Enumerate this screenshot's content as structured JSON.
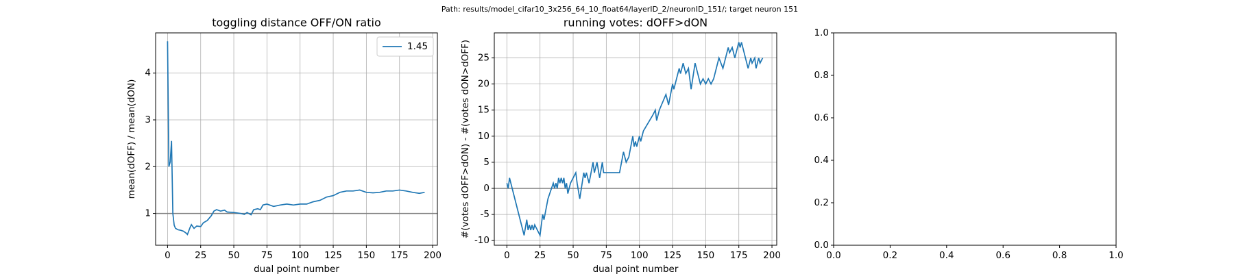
{
  "title": "Path: results/model_cifar10_3x256_64_10_float64/layerID_2/neuronID_151/; target neuron 151",
  "chart_data": [
    {
      "type": "line",
      "title": "toggling distance OFF/ON ratio",
      "xlabel": "dual point number",
      "ylabel": "mean(dOFF) / mean(dON)",
      "x": [
        0,
        1,
        2,
        3,
        4,
        5,
        6,
        8,
        10,
        12,
        14,
        15,
        17,
        18,
        20,
        22,
        25,
        27,
        30,
        33,
        35,
        37,
        40,
        43,
        45,
        50,
        55,
        58,
        60,
        63,
        65,
        68,
        70,
        72,
        75,
        78,
        80,
        85,
        90,
        95,
        100,
        105,
        110,
        115,
        120,
        125,
        130,
        135,
        140,
        145,
        150,
        155,
        160,
        165,
        170,
        175,
        180,
        185,
        190,
        194
      ],
      "series": [
        {
          "name": "1.45",
          "color": "#1f77b4",
          "values": [
            4.68,
            2.0,
            2.1,
            2.55,
            1.0,
            0.75,
            0.68,
            0.65,
            0.64,
            0.62,
            0.58,
            0.55,
            0.7,
            0.76,
            0.68,
            0.73,
            0.72,
            0.8,
            0.85,
            0.95,
            1.05,
            1.08,
            1.05,
            1.07,
            1.03,
            1.02,
            1.0,
            0.98,
            1.02,
            0.97,
            1.08,
            1.1,
            1.08,
            1.18,
            1.2,
            1.17,
            1.15,
            1.18,
            1.2,
            1.18,
            1.2,
            1.2,
            1.25,
            1.28,
            1.35,
            1.38,
            1.45,
            1.48,
            1.48,
            1.5,
            1.45,
            1.44,
            1.45,
            1.48,
            1.48,
            1.5,
            1.48,
            1.45,
            1.43,
            1.45
          ]
        }
      ],
      "xlim": [
        -9,
        203.6
      ],
      "ylim": [
        0.32,
        4.86
      ],
      "xticks": [
        0,
        25,
        50,
        75,
        100,
        125,
        150,
        175,
        200
      ],
      "yticks": [
        1,
        2,
        3,
        4
      ],
      "grid": true,
      "legend": "upper right",
      "hline": 1,
      "hline_color": "#808080"
    },
    {
      "type": "line",
      "title": "running votes: dOFF>dON",
      "xlabel": "dual point number",
      "ylabel": "#(votes dOFF>dON) - #(votes dON>dOFF)",
      "x": [
        0,
        1,
        2,
        13,
        15,
        16,
        17,
        18,
        19,
        20,
        21,
        25,
        27,
        28,
        31,
        35,
        36,
        37,
        38,
        39,
        40,
        41,
        42,
        43,
        44,
        45,
        46,
        48,
        52,
        53,
        55,
        58,
        59,
        60,
        62,
        65,
        66,
        67,
        68,
        70,
        72,
        73,
        75,
        80,
        85,
        88,
        90,
        92,
        95,
        96,
        97,
        98,
        100,
        101,
        103,
        110,
        112,
        113,
        115,
        120,
        122,
        125,
        126,
        130,
        131,
        133,
        135,
        137,
        139,
        142,
        143,
        146,
        148,
        150,
        152,
        154,
        156,
        160,
        163,
        167,
        168,
        170,
        172,
        175,
        176,
        177,
        180,
        182,
        184,
        185,
        187,
        188,
        190,
        191,
        193
      ],
      "series": [
        {
          "name": "votes",
          "color": "#1f77b4",
          "values": [
            1,
            0,
            2,
            -9,
            -6,
            -8,
            -7,
            -8,
            -7,
            -8,
            -7,
            -9,
            -5,
            -6,
            -2,
            1,
            0,
            1,
            0,
            2,
            1,
            2,
            1,
            2,
            0,
            1,
            -1,
            1,
            3,
            1,
            -2,
            3,
            2,
            3,
            1,
            5,
            3,
            4,
            5,
            2,
            5,
            3,
            3,
            3,
            3,
            7,
            5,
            6,
            10,
            8,
            9,
            8,
            10,
            9,
            11,
            14,
            15,
            13,
            15,
            18,
            16,
            20,
            19,
            23,
            22,
            24,
            22,
            23,
            19,
            24,
            23,
            20,
            21,
            20,
            21,
            20,
            21,
            25,
            23,
            27,
            26,
            27,
            25,
            28,
            27,
            28,
            25,
            23,
            25,
            24,
            25,
            23,
            25,
            24,
            25
          ]
        }
      ],
      "xlim": [
        -9.5,
        203.6
      ],
      "ylim": [
        -10.9,
        29.8
      ],
      "xticks": [
        0,
        25,
        50,
        75,
        100,
        125,
        150,
        175,
        200
      ],
      "yticks": [
        -10,
        -5,
        0,
        5,
        10,
        15,
        20,
        25
      ],
      "grid": true,
      "hline": 0,
      "hline_color": "#808080"
    },
    {
      "type": "line",
      "series": [],
      "xlim": [
        0,
        1
      ],
      "ylim": [
        0,
        1
      ],
      "xticks": [
        {
          "value": 0,
          "label": "0.0"
        },
        0.2,
        0.4,
        0.6,
        0.8,
        {
          "value": 1,
          "label": "1.0"
        }
      ],
      "yticks": [
        {
          "value": 0,
          "label": "0.0"
        },
        0.2,
        0.4,
        0.6,
        0.8,
        {
          "value": 1,
          "label": "1.0"
        }
      ],
      "grid": false
    }
  ]
}
